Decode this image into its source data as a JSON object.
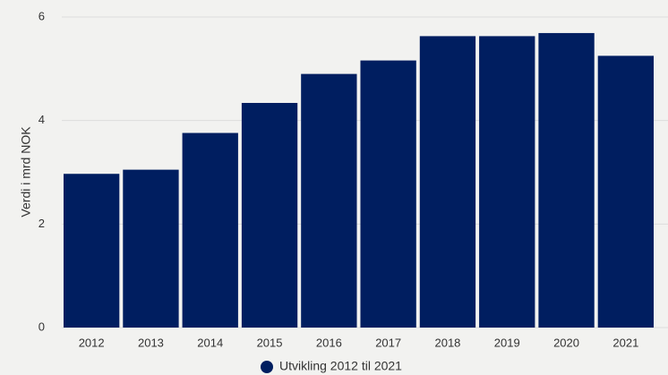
{
  "chart_data": {
    "type": "bar",
    "y_label": "Verdi i mrd NOK",
    "categories": [
      "2012",
      "2013",
      "2014",
      "2015",
      "2016",
      "2017",
      "2018",
      "2019",
      "2020",
      "2021"
    ],
    "series": [
      {
        "name": "Utvikling 2012 til 2021",
        "color": "#001e60",
        "values": [
          2.97,
          3.05,
          3.76,
          4.34,
          4.9,
          5.16,
          5.63,
          5.63,
          5.69,
          5.25
        ]
      }
    ],
    "ylim": [
      0,
      6
    ],
    "yticks": [
      0,
      2,
      4,
      6
    ],
    "grid": true,
    "legend": "bottom"
  }
}
